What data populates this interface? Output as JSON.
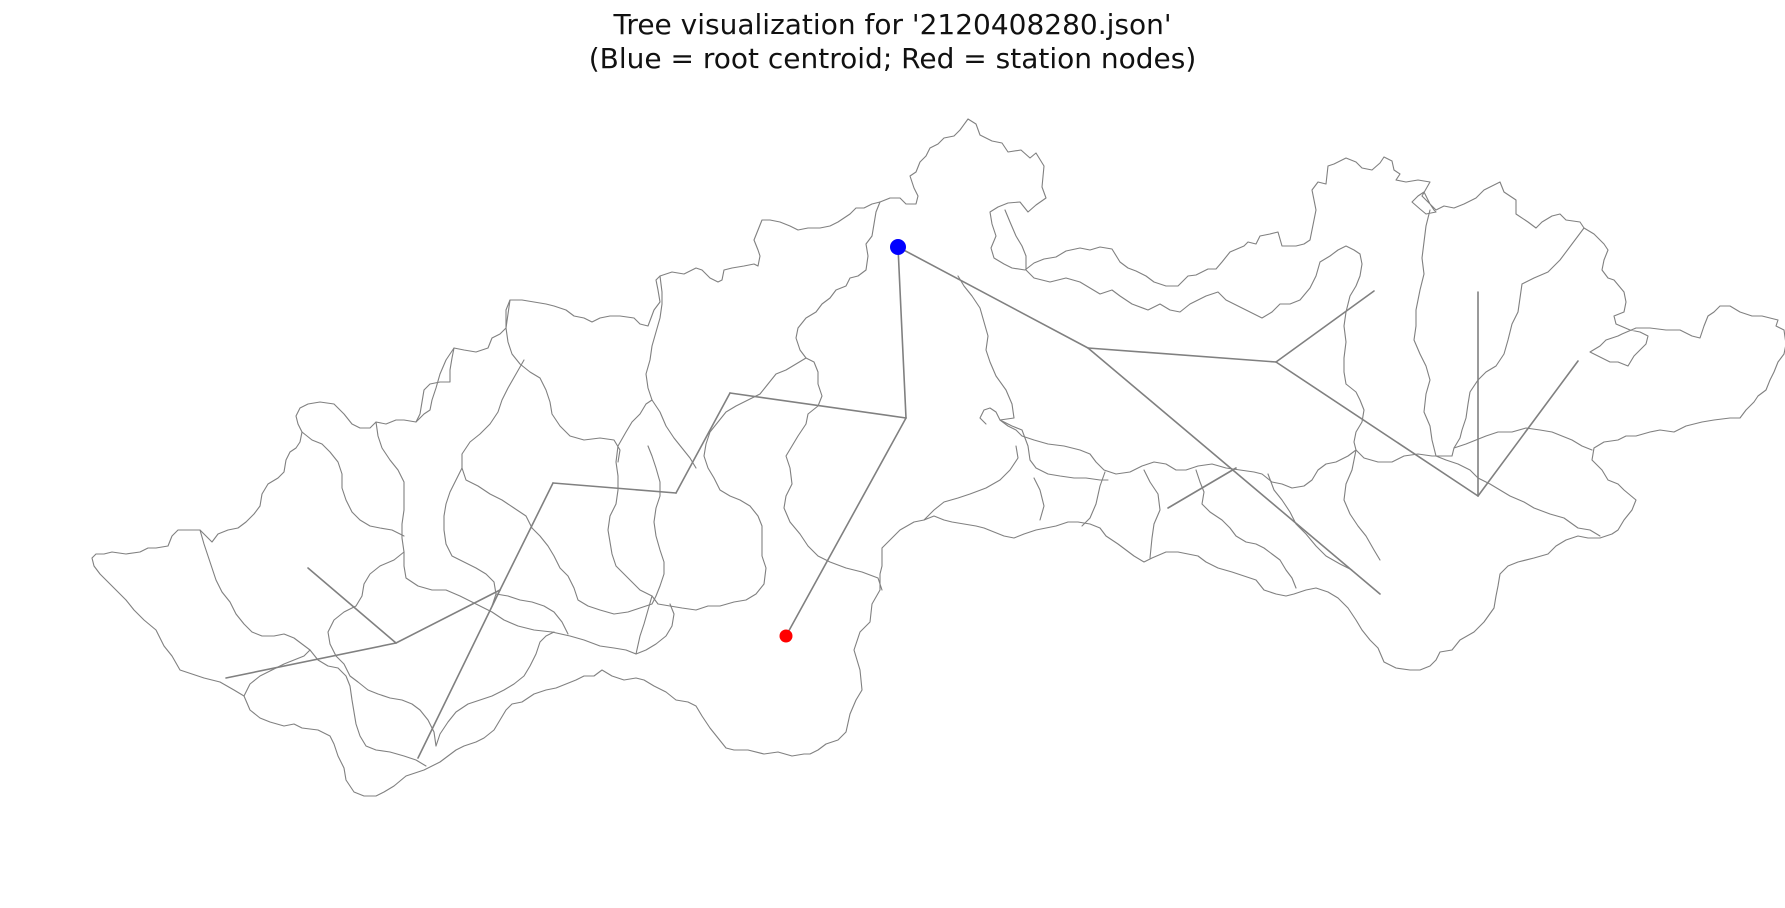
{
  "title": {
    "line1": "Tree visualization for '2120408280.json'",
    "line2": "(Blue = root centroid; Red = station nodes)"
  },
  "colors": {
    "boundary": "#808080",
    "edge": "#808080",
    "root": "#0000ff",
    "station": "#ff0000",
    "background": "#ffffff"
  },
  "legend_meaning": {
    "root_marker": "root centroid",
    "station_marker": "station nodes"
  },
  "tree": {
    "root_count": 1,
    "station_count": 1
  }
}
